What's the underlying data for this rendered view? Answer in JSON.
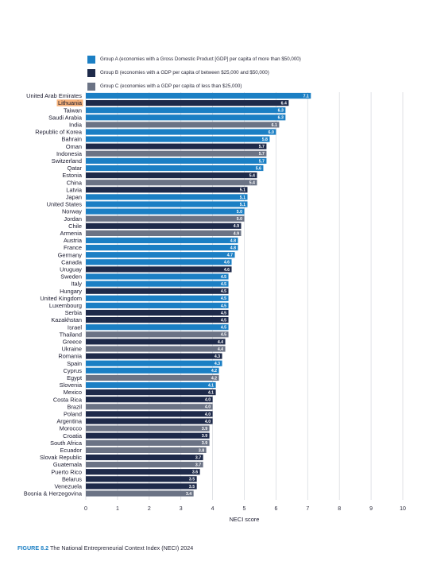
{
  "legend": [
    {
      "key": "A",
      "label": "Group A (economies with a Gross Domestic Product [GDP] per capita of more than $50,000)",
      "color": "#1b7fc4"
    },
    {
      "key": "B",
      "label": "Group B (economies with a GDP per capita of between $25,000 and $50,000)",
      "color": "#1e2a4a"
    },
    {
      "key": "C",
      "label": "Group C (economies with a GDP per capita of less than $25,000)",
      "color": "#6b7385"
    }
  ],
  "caption": {
    "label": "FIGURE 8.2",
    "text": "The National Entrepreneurial Context Index (NECI) 2024"
  },
  "highlight": "Lithuania",
  "highlight_color": "#f7b27a",
  "chart_data": {
    "type": "bar",
    "orientation": "horizontal",
    "xlabel": "NECI score",
    "xlim": [
      0,
      10
    ],
    "xticks": [
      0,
      1,
      2,
      3,
      4,
      5,
      6,
      7,
      8,
      9,
      10
    ],
    "grid": "vertical",
    "legend_position": "top",
    "categories": [
      "United Arab Emirates",
      "Lithuania",
      "Taiwan",
      "Saudi Arabia",
      "India",
      "Republic of Korea",
      "Bahrain",
      "Oman",
      "Indonesia",
      "Switzerland",
      "Qatar",
      "Estonia",
      "China",
      "Latvia",
      "Japan",
      "United States",
      "Norway",
      "Jordan",
      "Chile",
      "Armenia",
      "Austria",
      "France",
      "Germany",
      "Canada",
      "Uruguay",
      "Sweden",
      "Italy",
      "Hungary",
      "United Kingdom",
      "Luxembourg",
      "Serbia",
      "Kazakhstan",
      "Israel",
      "Thailand",
      "Greece",
      "Ukraine",
      "Romania",
      "Spain",
      "Cyprus",
      "Egypt",
      "Slovenia",
      "Mexico",
      "Costa Rica",
      "Brazil",
      "Poland",
      "Argentina",
      "Morocco",
      "Croatia",
      "South Africa",
      "Ecuador",
      "Slovak Republic",
      "Guatemala",
      "Puerto Rico",
      "Belarus",
      "Venezuela",
      "Bosnia & Herzegovina"
    ],
    "values": [
      7.1,
      6.4,
      6.3,
      6.3,
      6.1,
      6.0,
      5.8,
      5.7,
      5.7,
      5.7,
      5.6,
      5.4,
      5.4,
      5.1,
      5.1,
      5.1,
      5.0,
      5.0,
      4.9,
      4.9,
      4.8,
      4.8,
      4.7,
      4.6,
      4.6,
      4.5,
      4.5,
      4.5,
      4.5,
      4.5,
      4.5,
      4.5,
      4.5,
      4.5,
      4.4,
      4.4,
      4.3,
      4.3,
      4.2,
      4.2,
      4.1,
      4.1,
      4.0,
      4.0,
      4.0,
      4.0,
      3.9,
      3.9,
      3.9,
      3.8,
      3.7,
      3.7,
      3.6,
      3.5,
      3.5,
      3.4
    ],
    "value_labels": [
      "7.1",
      "6.4",
      "6.3",
      "6.3",
      "6.1",
      "6.0",
      "5.8",
      "5.7",
      "5.7",
      "5.7",
      "5.6",
      "5.4",
      "5.4",
      "5.1",
      "5.1",
      "5.1",
      "5.0",
      "5.0",
      "4.9",
      "4.9",
      "4.8",
      "4.8",
      "4.7",
      "4.6",
      "4.6",
      "4.5",
      "4.5",
      "4.5",
      "4.5",
      "4.5",
      "4.5",
      "4.5",
      "4.5",
      "4.5",
      "4.4",
      "4.4",
      "4.3",
      "4.3",
      "4.2",
      "4.2",
      "4.1",
      "4.1",
      "4.0",
      "4.0",
      "4.0",
      "4.0",
      "3.9",
      "3.9",
      "3.9",
      "3.8",
      "3.7",
      "3.7",
      "3.6",
      "3.5",
      "3.5",
      "3.4"
    ],
    "groups": [
      "A",
      "B",
      "A",
      "A",
      "C",
      "A",
      "A",
      "B",
      "C",
      "A",
      "A",
      "B",
      "C",
      "B",
      "A",
      "A",
      "A",
      "C",
      "B",
      "C",
      "A",
      "A",
      "A",
      "A",
      "B",
      "A",
      "A",
      "B",
      "A",
      "A",
      "B",
      "B",
      "A",
      "C",
      "B",
      "C",
      "B",
      "A",
      "A",
      "C",
      "A",
      "B",
      "B",
      "C",
      "B",
      "B",
      "C",
      "B",
      "C",
      "C",
      "B",
      "C",
      "B",
      "B",
      "B",
      "C"
    ]
  }
}
